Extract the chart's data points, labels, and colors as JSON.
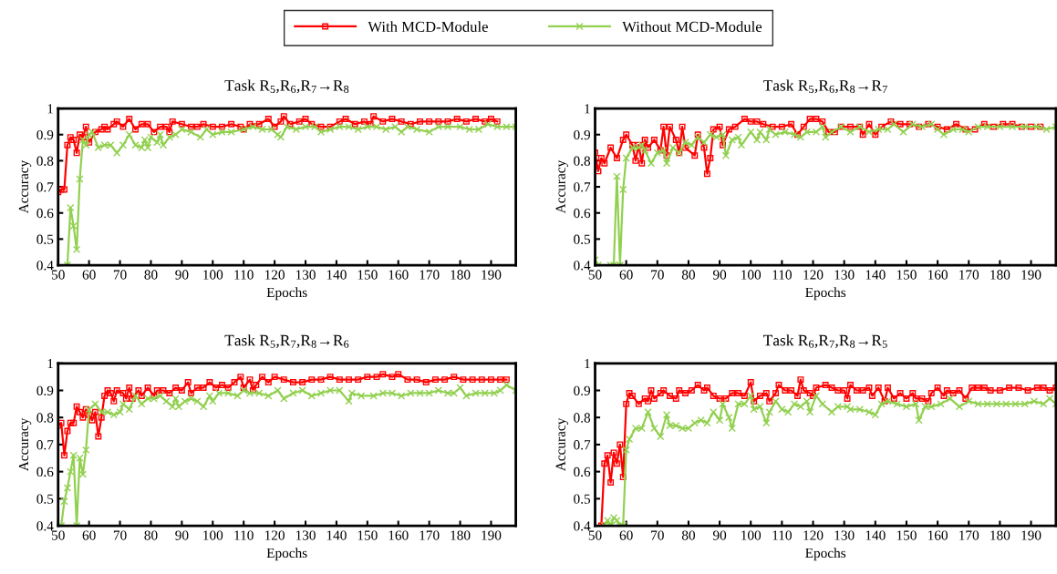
{
  "chart_data": [
    {
      "type": "line",
      "title": "Task R$_{5}$,R$_{6}$,R$_{7}$→R$_{8}$",
      "xlabel": "Epochs",
      "ylabel": "Accuracy",
      "legend": "top",
      "xlim": [
        50,
        198
      ],
      "xticks": [
        50,
        60,
        70,
        80,
        90,
        100,
        110,
        120,
        130,
        140,
        150,
        160,
        170,
        180,
        190
      ],
      "ylim": [
        0.4,
        1
      ],
      "yticks": [
        0.4,
        0.5,
        0.6,
        0.7,
        0.8,
        0.9,
        1
      ],
      "grid": false,
      "series": [
        {
          "name": "With MCD-Module",
          "color": "#ff0000",
          "marker": "square",
          "x": [
            50,
            51,
            52,
            53,
            54,
            55,
            56,
            57,
            58,
            59,
            60,
            62,
            64,
            65,
            66,
            68,
            69,
            71,
            73,
            75,
            77,
            79,
            81,
            83,
            85,
            86,
            87,
            90,
            93,
            95,
            97,
            100,
            103,
            106,
            109,
            110,
            112,
            115,
            118,
            120,
            122,
            123,
            125,
            128,
            130,
            132,
            135,
            138,
            141,
            143,
            146,
            149,
            151,
            152,
            155,
            158,
            161,
            164,
            167,
            170,
            173,
            176,
            179,
            182,
            185,
            188,
            190,
            192
          ],
          "values": [
            0.68,
            0.69,
            0.69,
            0.86,
            0.89,
            0.88,
            0.83,
            0.9,
            0.89,
            0.93,
            0.87,
            0.91,
            0.92,
            0.93,
            0.92,
            0.94,
            0.95,
            0.93,
            0.96,
            0.92,
            0.94,
            0.94,
            0.91,
            0.93,
            0.93,
            0.91,
            0.95,
            0.94,
            0.93,
            0.93,
            0.94,
            0.93,
            0.93,
            0.94,
            0.93,
            0.92,
            0.94,
            0.94,
            0.96,
            0.93,
            0.95,
            0.97,
            0.94,
            0.95,
            0.96,
            0.94,
            0.93,
            0.93,
            0.95,
            0.96,
            0.94,
            0.95,
            0.94,
            0.97,
            0.95,
            0.96,
            0.95,
            0.94,
            0.95,
            0.95,
            0.95,
            0.95,
            0.96,
            0.95,
            0.96,
            0.95,
            0.96,
            0.95
          ]
        },
        {
          "name": "Without MCD-Module",
          "color": "#92d050",
          "marker": "cross",
          "x": [
            53,
            54,
            55,
            56,
            57,
            58,
            59,
            60,
            61,
            63,
            65,
            67,
            69,
            71,
            73,
            75,
            77,
            78,
            79,
            80,
            82,
            83,
            84,
            86,
            88,
            90,
            93,
            96,
            98,
            100,
            103,
            106,
            110,
            113,
            116,
            119,
            121,
            122,
            124,
            127,
            130,
            133,
            135,
            138,
            141,
            144,
            147,
            150,
            153,
            156,
            159,
            161,
            163,
            166,
            170,
            173,
            176,
            180,
            183,
            186,
            189,
            192,
            195,
            198
          ],
          "values": [
            0.4,
            0.62,
            0.55,
            0.46,
            0.73,
            0.88,
            0.86,
            0.9,
            0.91,
            0.85,
            0.86,
            0.86,
            0.83,
            0.86,
            0.9,
            0.86,
            0.85,
            0.88,
            0.85,
            0.89,
            0.87,
            0.9,
            0.86,
            0.89,
            0.9,
            0.92,
            0.91,
            0.89,
            0.92,
            0.9,
            0.91,
            0.91,
            0.92,
            0.93,
            0.92,
            0.92,
            0.9,
            0.89,
            0.93,
            0.92,
            0.93,
            0.93,
            0.91,
            0.92,
            0.93,
            0.93,
            0.92,
            0.93,
            0.93,
            0.92,
            0.93,
            0.91,
            0.93,
            0.92,
            0.91,
            0.93,
            0.93,
            0.93,
            0.92,
            0.92,
            0.94,
            0.93,
            0.93,
            0.93
          ]
        }
      ]
    },
    {
      "type": "line",
      "title": "Task R$_{5}$,R$_{6}$,R$_{8}$→R$_{7}$",
      "xlabel": "Epochs",
      "ylabel": "Accuracy",
      "xlim": [
        50,
        198
      ],
      "xticks": [
        50,
        60,
        70,
        80,
        90,
        100,
        110,
        120,
        130,
        140,
        150,
        160,
        170,
        180,
        190
      ],
      "ylim": [
        0.4,
        1
      ],
      "yticks": [
        0.4,
        0.5,
        0.6,
        0.7,
        0.8,
        0.9,
        1
      ],
      "grid": false,
      "series": [
        {
          "name": "With MCD-Module",
          "color": "#ff0000",
          "marker": "square",
          "x": [
            50,
            51,
            52,
            53,
            55,
            57,
            59,
            60,
            62,
            63,
            64,
            65,
            66,
            67,
            69,
            71,
            72,
            73,
            74,
            76,
            77,
            78,
            79,
            82,
            83,
            85,
            86,
            87,
            88,
            90,
            91,
            93,
            95,
            98,
            100,
            102,
            104,
            107,
            110,
            113,
            115,
            117,
            119,
            121,
            123,
            125,
            127,
            129,
            132,
            135,
            136,
            138,
            140,
            142,
            145,
            148,
            151,
            154,
            157,
            160,
            163,
            166,
            169,
            172,
            175,
            178,
            181,
            184,
            187,
            190,
            193
          ],
          "values": [
            0.83,
            0.76,
            0.81,
            0.79,
            0.85,
            0.81,
            0.88,
            0.9,
            0.86,
            0.8,
            0.86,
            0.79,
            0.88,
            0.85,
            0.88,
            0.84,
            0.93,
            0.82,
            0.93,
            0.88,
            0.83,
            0.93,
            0.85,
            0.82,
            0.9,
            0.85,
            0.75,
            0.81,
            0.92,
            0.93,
            0.86,
            0.92,
            0.93,
            0.96,
            0.95,
            0.95,
            0.94,
            0.93,
            0.93,
            0.94,
            0.9,
            0.93,
            0.96,
            0.96,
            0.95,
            0.91,
            0.91,
            0.93,
            0.93,
            0.93,
            0.9,
            0.94,
            0.9,
            0.93,
            0.95,
            0.94,
            0.94,
            0.93,
            0.94,
            0.93,
            0.92,
            0.94,
            0.92,
            0.92,
            0.94,
            0.93,
            0.94,
            0.94,
            0.93,
            0.93,
            0.93
          ]
        },
        {
          "name": "Without MCD-Module",
          "color": "#92d050",
          "marker": "cross",
          "x": [
            50,
            51,
            55,
            56,
            57,
            58,
            59,
            60,
            62,
            64,
            65,
            66,
            68,
            70,
            72,
            73,
            75,
            77,
            79,
            81,
            83,
            85,
            87,
            89,
            91,
            92,
            94,
            96,
            97,
            100,
            102,
            103,
            105,
            106,
            108,
            111,
            114,
            116,
            118,
            121,
            123,
            124,
            126,
            129,
            132,
            135,
            138,
            141,
            144,
            146,
            149,
            152,
            155,
            158,
            160,
            162,
            165,
            168,
            170,
            173,
            176,
            180,
            184,
            188,
            192,
            195,
            198
          ],
          "values": [
            0.42,
            0.4,
            0.4,
            0.4,
            0.74,
            0.4,
            0.69,
            0.81,
            0.85,
            0.85,
            0.86,
            0.84,
            0.79,
            0.83,
            0.84,
            0.79,
            0.85,
            0.83,
            0.87,
            0.86,
            0.89,
            0.87,
            0.9,
            0.89,
            0.9,
            0.82,
            0.88,
            0.89,
            0.86,
            0.91,
            0.88,
            0.91,
            0.88,
            0.92,
            0.9,
            0.91,
            0.9,
            0.89,
            0.91,
            0.91,
            0.93,
            0.89,
            0.91,
            0.93,
            0.91,
            0.93,
            0.91,
            0.92,
            0.92,
            0.94,
            0.91,
            0.94,
            0.93,
            0.94,
            0.92,
            0.9,
            0.92,
            0.92,
            0.91,
            0.93,
            0.93,
            0.93,
            0.93,
            0.93,
            0.93,
            0.92,
            0.93
          ]
        }
      ]
    },
    {
      "type": "line",
      "title": "Task R$_{5}$,R$_{7}$,R$_{8}$→R$_{6}$",
      "xlabel": "Epochs",
      "ylabel": "Accuracy",
      "xlim": [
        50,
        198
      ],
      "xticks": [
        50,
        60,
        70,
        80,
        90,
        100,
        110,
        120,
        130,
        140,
        150,
        160,
        170,
        180,
        190
      ],
      "ylim": [
        0.4,
        1
      ],
      "yticks": [
        0.4,
        0.5,
        0.6,
        0.7,
        0.8,
        0.9,
        1
      ],
      "grid": false,
      "series": [
        {
          "name": "With MCD-Module",
          "color": "#ff0000",
          "marker": "square",
          "x": [
            50,
            51,
            52,
            53,
            54,
            55,
            56,
            57,
            58,
            59,
            60,
            61,
            62,
            63,
            64,
            65,
            66,
            67,
            68,
            69,
            71,
            72,
            73,
            74,
            76,
            77,
            79,
            81,
            82,
            84,
            86,
            88,
            90,
            92,
            93,
            95,
            97,
            99,
            101,
            103,
            105,
            107,
            109,
            110,
            112,
            113,
            114,
            116,
            118,
            120,
            123,
            126,
            129,
            132,
            135,
            138,
            141,
            144,
            147,
            150,
            153,
            155,
            158,
            160,
            163,
            166,
            169,
            172,
            175,
            178,
            181,
            184,
            187,
            190,
            193,
            195
          ],
          "values": [
            0.77,
            0.78,
            0.66,
            0.75,
            0.78,
            0.78,
            0.84,
            0.82,
            0.8,
            0.83,
            0.81,
            0.79,
            0.82,
            0.73,
            0.8,
            0.88,
            0.9,
            0.89,
            0.86,
            0.9,
            0.89,
            0.87,
            0.91,
            0.87,
            0.9,
            0.88,
            0.91,
            0.88,
            0.9,
            0.9,
            0.89,
            0.91,
            0.9,
            0.93,
            0.89,
            0.91,
            0.91,
            0.93,
            0.91,
            0.92,
            0.91,
            0.93,
            0.95,
            0.91,
            0.94,
            0.9,
            0.92,
            0.95,
            0.93,
            0.95,
            0.94,
            0.93,
            0.93,
            0.94,
            0.94,
            0.95,
            0.94,
            0.94,
            0.94,
            0.95,
            0.95,
            0.96,
            0.95,
            0.96,
            0.94,
            0.94,
            0.93,
            0.94,
            0.94,
            0.95,
            0.94,
            0.94,
            0.94,
            0.94,
            0.94,
            0.94
          ]
        },
        {
          "name": "Without MCD-Module",
          "color": "#92d050",
          "marker": "cross",
          "x": [
            51,
            52,
            53,
            54,
            55,
            56,
            57,
            58,
            59,
            60,
            62,
            64,
            66,
            68,
            70,
            71,
            73,
            75,
            77,
            79,
            81,
            83,
            85,
            87,
            88,
            89,
            91,
            93,
            95,
            97,
            99,
            100,
            102,
            105,
            108,
            110,
            112,
            115,
            118,
            121,
            123,
            126,
            129,
            132,
            135,
            138,
            141,
            144,
            145,
            148,
            152,
            155,
            158,
            161,
            164,
            167,
            170,
            173,
            176,
            178,
            180,
            182,
            185,
            188,
            191,
            193,
            195,
            198
          ],
          "values": [
            0.4,
            0.49,
            0.54,
            0.6,
            0.66,
            0.4,
            0.65,
            0.59,
            0.68,
            0.83,
            0.85,
            0.82,
            0.82,
            0.81,
            0.82,
            0.85,
            0.83,
            0.88,
            0.85,
            0.87,
            0.87,
            0.88,
            0.86,
            0.84,
            0.87,
            0.84,
            0.86,
            0.87,
            0.86,
            0.84,
            0.88,
            0.86,
            0.89,
            0.89,
            0.88,
            0.9,
            0.89,
            0.89,
            0.88,
            0.9,
            0.87,
            0.89,
            0.9,
            0.88,
            0.89,
            0.9,
            0.9,
            0.86,
            0.89,
            0.88,
            0.88,
            0.89,
            0.89,
            0.88,
            0.89,
            0.89,
            0.89,
            0.9,
            0.89,
            0.89,
            0.91,
            0.88,
            0.89,
            0.89,
            0.89,
            0.9,
            0.92,
            0.9
          ]
        }
      ]
    },
    {
      "type": "line",
      "title": "Task R$_{6}$,R$_{7}$,R$_{8}$→R$_{5}$",
      "xlabel": "Epochs",
      "ylabel": "Accuracy",
      "xlim": [
        50,
        198
      ],
      "xticks": [
        50,
        60,
        70,
        80,
        90,
        100,
        110,
        120,
        130,
        140,
        150,
        160,
        170,
        180,
        190
      ],
      "ylim": [
        0.4,
        1
      ],
      "yticks": [
        0.4,
        0.5,
        0.6,
        0.7,
        0.8,
        0.9,
        1
      ],
      "grid": false,
      "series": [
        {
          "name": "With MCD-Module",
          "color": "#ff0000",
          "marker": "square",
          "x": [
            52,
            53,
            54,
            55,
            56,
            57,
            58,
            59,
            60,
            61,
            62,
            64,
            66,
            67,
            68,
            69,
            71,
            72,
            74,
            76,
            77,
            79,
            81,
            83,
            85,
            86,
            88,
            90,
            92,
            94,
            96,
            98,
            100,
            101,
            103,
            105,
            106,
            108,
            109,
            111,
            113,
            115,
            116,
            117,
            119,
            120,
            121,
            124,
            126,
            128,
            130,
            131,
            132,
            134,
            136,
            138,
            139,
            141,
            143,
            144,
            146,
            148,
            150,
            152,
            153,
            155,
            157,
            158,
            160,
            162,
            163,
            165,
            167,
            169,
            171,
            173,
            175,
            177,
            180,
            183,
            186,
            189,
            192,
            194,
            196,
            198
          ],
          "values": [
            0.4,
            0.63,
            0.66,
            0.56,
            0.67,
            0.63,
            0.7,
            0.58,
            0.85,
            0.89,
            0.88,
            0.85,
            0.87,
            0.86,
            0.9,
            0.87,
            0.89,
            0.9,
            0.88,
            0.87,
            0.9,
            0.89,
            0.9,
            0.92,
            0.9,
            0.91,
            0.88,
            0.87,
            0.87,
            0.89,
            0.89,
            0.88,
            0.93,
            0.86,
            0.88,
            0.89,
            0.86,
            0.89,
            0.92,
            0.9,
            0.9,
            0.88,
            0.94,
            0.9,
            0.89,
            0.88,
            0.91,
            0.92,
            0.91,
            0.9,
            0.9,
            0.87,
            0.92,
            0.9,
            0.9,
            0.91,
            0.88,
            0.91,
            0.86,
            0.91,
            0.87,
            0.89,
            0.87,
            0.89,
            0.87,
            0.87,
            0.86,
            0.89,
            0.91,
            0.88,
            0.9,
            0.89,
            0.9,
            0.87,
            0.91,
            0.91,
            0.91,
            0.9,
            0.9,
            0.91,
            0.91,
            0.9,
            0.91,
            0.91,
            0.9,
            0.91
          ]
        },
        {
          "name": "Without MCD-Module",
          "color": "#92d050",
          "marker": "cross",
          "x": [
            53,
            54,
            55,
            56,
            57,
            58,
            59,
            60,
            61,
            63,
            65,
            67,
            69,
            71,
            73,
            74,
            76,
            78,
            80,
            82,
            84,
            86,
            88,
            90,
            91,
            93,
            94,
            96,
            98,
            100,
            101,
            103,
            105,
            106,
            108,
            110,
            112,
            114,
            116,
            118,
            119,
            121,
            123,
            126,
            128,
            131,
            132,
            135,
            138,
            140,
            142,
            144,
            147,
            150,
            153,
            154,
            156,
            158,
            161,
            164,
            167,
            170,
            173,
            176,
            179,
            182,
            185,
            188,
            191,
            194,
            196,
            198
          ],
          "values": [
            0.4,
            0.42,
            0.4,
            0.43,
            0.42,
            0.4,
            0.4,
            0.68,
            0.72,
            0.76,
            0.76,
            0.82,
            0.76,
            0.73,
            0.81,
            0.77,
            0.77,
            0.76,
            0.76,
            0.78,
            0.79,
            0.78,
            0.82,
            0.79,
            0.85,
            0.8,
            0.76,
            0.85,
            0.85,
            0.88,
            0.83,
            0.84,
            0.78,
            0.82,
            0.86,
            0.83,
            0.82,
            0.85,
            0.84,
            0.86,
            0.82,
            0.88,
            0.85,
            0.82,
            0.84,
            0.84,
            0.83,
            0.83,
            0.82,
            0.81,
            0.85,
            0.86,
            0.85,
            0.84,
            0.85,
            0.79,
            0.84,
            0.84,
            0.85,
            0.87,
            0.84,
            0.86,
            0.85,
            0.85,
            0.85,
            0.85,
            0.85,
            0.85,
            0.86,
            0.85,
            0.87,
            0.85
          ]
        }
      ]
    }
  ]
}
